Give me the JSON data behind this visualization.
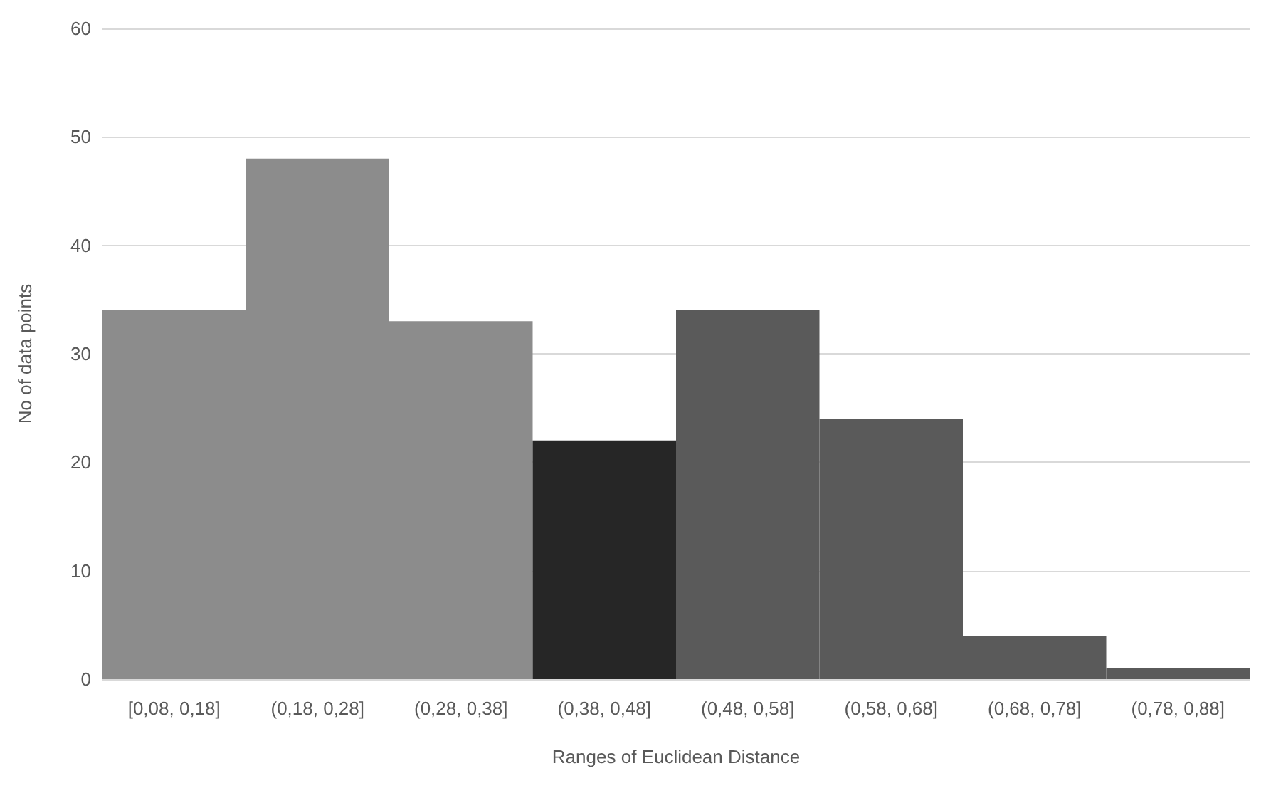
{
  "chart_data": {
    "type": "bar",
    "xlabel": "Ranges of Euclidean Distance",
    "ylabel": "No of data points",
    "categories": [
      "[0,08, 0,18]",
      "(0,18, 0,28]",
      "(0,28, 0,38]",
      "(0,38, 0,48]",
      "(0,48, 0,58]",
      "(0,58, 0,68]",
      "(0,68, 0,78]",
      "(0,78, 0,88]"
    ],
    "values": [
      34,
      48,
      33,
      22,
      34,
      24,
      4,
      1
    ],
    "colors": [
      "#8c8c8c",
      "#8c8c8c",
      "#8c8c8c",
      "#262626",
      "#5a5a5a",
      "#5a5a5a",
      "#5a5a5a",
      "#5a5a5a"
    ],
    "ylim": [
      0,
      60
    ],
    "yticks": [
      0,
      10,
      20,
      30,
      40,
      50,
      60
    ],
    "grid": "y"
  }
}
